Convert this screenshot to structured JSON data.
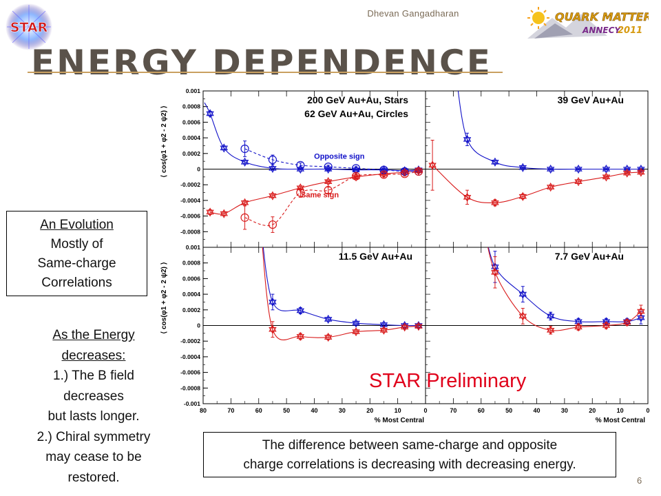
{
  "header": {
    "author": "Dhevan Gangadharan",
    "title": "ENERGY DEPENDENCE",
    "star_logo_text": "STAR",
    "conf_logo": {
      "line1": "QUARK MATTER",
      "line2": "ANNECY",
      "year": "2011"
    }
  },
  "evolution_box": {
    "heading": "An Evolution",
    "lines": [
      "Mostly of",
      "Same-charge",
      "Correlations"
    ]
  },
  "energy_note": {
    "heading_l1": "As the Energy",
    "heading_l2": "decreases:",
    "l1": "1.) The B field",
    "l2": "decreases",
    "l3": "but lasts longer.",
    "l4": "2.) Chiral symmetry",
    "l5": "may cease to be",
    "l6": "restored."
  },
  "bottom_box": {
    "line1": "The difference between same-charge and opposite",
    "line2": "charge correlations is decreasing with decreasing energy."
  },
  "page_number": "6",
  "preliminary": "STAR Preliminary",
  "colors": {
    "opposite": "#1010c8",
    "same": "#d81818",
    "title": "#5a524a",
    "rule": "#c9a060",
    "prelim": "#e0001a"
  },
  "chart_data": {
    "type": "scatter",
    "xlabel": "% Most Central",
    "ylabel": "⟨ cos(φ1 + φ2 - 2 ψ2) ⟩",
    "xlim": [
      80,
      0
    ],
    "ylim": [
      -0.001,
      0.001
    ],
    "x_ticks": [
      "80",
      "70",
      "60",
      "50",
      "40",
      "30",
      "20",
      "10",
      "0"
    ],
    "x_ticks_right": [
      "70",
      "60",
      "50",
      "40",
      "30",
      "20",
      "10",
      "0"
    ],
    "y_ticks_top": [
      "0.001",
      "0.0008",
      "0.0006",
      "0.0004",
      "0.0002",
      "0",
      "-0.0002",
      "-0.0004",
      "-0.0006",
      "-0.0008"
    ],
    "y_ticks_bottom": [
      "0.001",
      "0.0008",
      "0.0006",
      "0.0004",
      "0.0002",
      "0",
      "-0.0002",
      "-0.0004",
      "-0.0006",
      "-0.0008",
      "-0.001"
    ],
    "panels": [
      {
        "label_lines": [
          "200 GeV Au+Au, Stars",
          "62 GeV Au+Au, Circles"
        ],
        "annotations": [
          {
            "text": "Opposite sign",
            "color": "#1010c8",
            "x": 31,
            "y": 0.00013
          },
          {
            "text": "Same sign",
            "color": "#d81818",
            "x": 38,
            "y": -0.00036
          }
        ],
        "series": [
          {
            "kind": "opposite",
            "marker": "star",
            "dash": false,
            "x": [
              77.5,
              72.5,
              65,
              55,
              45,
              35,
              25,
              15,
              7.5,
              2.5
            ],
            "y": [
              0.00071,
              0.00027,
              9e-05,
              1e-05,
              0.0,
              0.0,
              -1e-05,
              -1e-05,
              -2e-05,
              -1e-05
            ],
            "err": [
              3e-05,
              2e-05,
              2e-05,
              2e-05,
              1e-05,
              1e-05,
              1e-05,
              1e-05,
              1e-05,
              1e-05
            ]
          },
          {
            "kind": "same",
            "marker": "star",
            "dash": false,
            "x": [
              77.5,
              72.5,
              65,
              55,
              45,
              35,
              25,
              15,
              7.5,
              2.5
            ],
            "y": [
              -0.00055,
              -0.00057,
              -0.00043,
              -0.00034,
              -0.00024,
              -0.00016,
              -0.0001,
              -6e-05,
              -4e-05,
              -2e-05
            ],
            "err": [
              3e-05,
              2e-05,
              2e-05,
              2e-05,
              2e-05,
              1e-05,
              1e-05,
              1e-05,
              1e-05,
              1e-05
            ]
          },
          {
            "kind": "opposite",
            "marker": "circle",
            "dash": true,
            "x": [
              65,
              55,
              45,
              35,
              25,
              15,
              7.5,
              2.5
            ],
            "y": [
              0.00026,
              0.00012,
              5e-05,
              3e-05,
              1e-05,
              -1e-05,
              -3e-05,
              -3e-05
            ],
            "err": [
              0.0001,
              6e-05,
              3e-05,
              2e-05,
              2e-05,
              2e-05,
              2e-05,
              2e-05
            ]
          },
          {
            "kind": "same",
            "marker": "circle",
            "dash": true,
            "x": [
              65,
              55,
              45,
              35,
              25,
              15,
              7.5,
              2.5
            ],
            "y": [
              -0.00062,
              -0.00071,
              -0.0003,
              -0.00027,
              -9e-05,
              -7e-05,
              -6e-05,
              -3e-05
            ],
            "err": [
              0.00015,
              0.0001,
              6e-05,
              4e-05,
              3e-05,
              3e-05,
              3e-05,
              2e-05
            ]
          }
        ]
      },
      {
        "label_lines": [
          "39 GeV Au+Au"
        ],
        "annotations": [],
        "series": [
          {
            "kind": "opposite",
            "marker": "star",
            "dash": false,
            "x": [
              65,
              55,
              45,
              35,
              25,
              15,
              7.5,
              2.5
            ],
            "y": [
              0.00038,
              9e-05,
              2e-05,
              0.0,
              0.0,
              0.0,
              0.0,
              0.0
            ],
            "err": [
              8e-05,
              2e-05,
              1e-05,
              1e-05,
              1e-05,
              1e-05,
              1e-05,
              1e-05
            ]
          },
          {
            "kind": "same",
            "marker": "star",
            "dash": false,
            "x": [
              77.5,
              65,
              55,
              45,
              35,
              25,
              15,
              7.5,
              2.5
            ],
            "y": [
              5e-05,
              -0.00036,
              -0.00043,
              -0.00035,
              -0.00023,
              -0.00016,
              -0.0001,
              -5e-05,
              -4e-05
            ],
            "err": [
              0.00032,
              9e-05,
              4e-05,
              3e-05,
              2e-05,
              2e-05,
              1e-05,
              1e-05,
              1e-05
            ]
          }
        ]
      },
      {
        "label_lines": [
          "11.5 GeV Au+Au"
        ],
        "annotations": [],
        "series": [
          {
            "kind": "opposite",
            "marker": "star",
            "dash": false,
            "x": [
              55,
              45,
              35,
              25,
              15,
              7.5,
              2.5
            ],
            "y": [
              0.0003,
              0.00019,
              8e-05,
              3e-05,
              1e-05,
              0.0,
              0.0
            ],
            "err": [
              0.0001,
              4e-05,
              2e-05,
              2e-05,
              2e-05,
              2e-05,
              2e-05
            ]
          },
          {
            "kind": "same",
            "marker": "star",
            "dash": false,
            "x": [
              55,
              45,
              35,
              25,
              15,
              7.5,
              2.5
            ],
            "y": [
              -5e-05,
              -0.00014,
              -0.00015,
              -8e-05,
              -6e-05,
              -2e-05,
              -1e-05
            ],
            "err": [
              0.0001,
              4e-05,
              3e-05,
              2e-05,
              2e-05,
              2e-05,
              2e-05
            ]
          }
        ]
      },
      {
        "label_lines": [
          "7.7 GeV Au+Au"
        ],
        "annotations": [],
        "series": [
          {
            "kind": "opposite",
            "marker": "star",
            "dash": false,
            "x": [
              55,
              45,
              35,
              25,
              15,
              7.5,
              2.5
            ],
            "y": [
              0.00075,
              0.0004,
              0.00012,
              5e-05,
              5e-05,
              5e-05,
              0.0001
            ],
            "err": [
              0.0002,
              0.0001,
              5e-05,
              4e-05,
              4e-05,
              4e-05,
              8e-05
            ]
          },
          {
            "kind": "same",
            "marker": "star",
            "dash": false,
            "x": [
              55,
              45,
              35,
              25,
              15,
              7.5,
              2.5
            ],
            "y": [
              0.00068,
              0.00012,
              -6e-05,
              -2e-05,
              0.0,
              4e-05,
              0.00018
            ],
            "err": [
              0.0002,
              0.0001,
              5e-05,
              4e-05,
              4e-05,
              4e-05,
              8e-05
            ]
          }
        ]
      }
    ]
  }
}
